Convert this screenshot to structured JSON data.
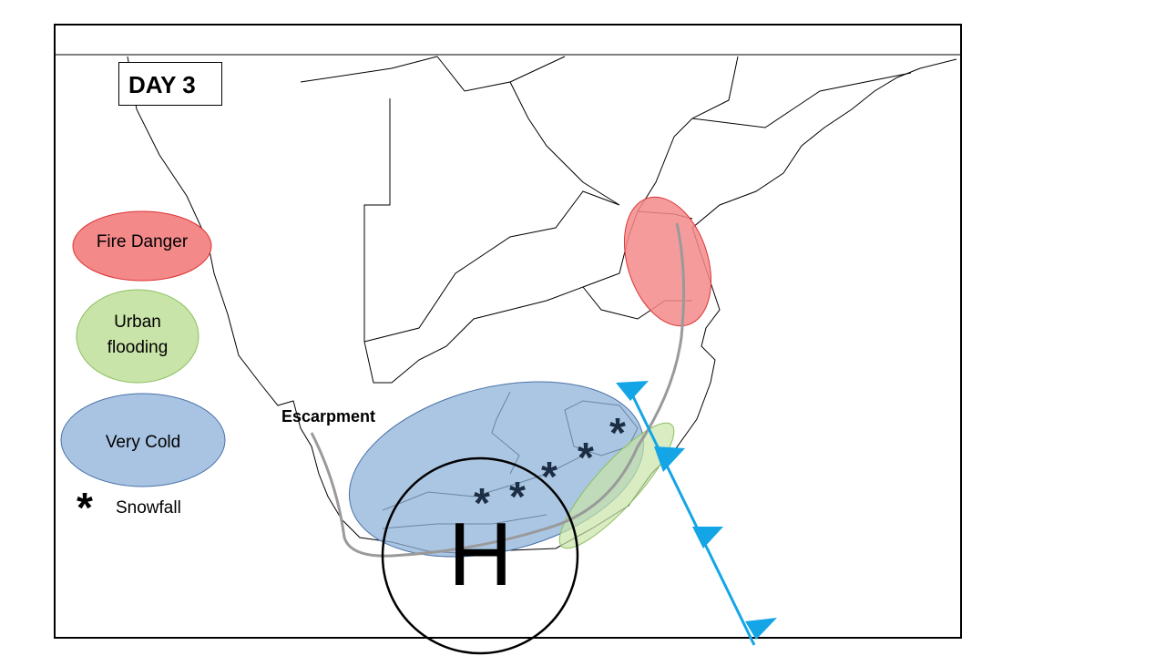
{
  "title": "DAY 3",
  "legend": {
    "fire": {
      "label": "Fire Danger",
      "color": "#f4898a"
    },
    "flood": {
      "label_line1": "Urban",
      "label_line2": "flooding",
      "color": "#c9e4a8"
    },
    "cold": {
      "label": "Very Cold",
      "color": "#8fb3d8"
    },
    "snow": {
      "label": "Snowfall",
      "symbol": "*"
    }
  },
  "labels": {
    "escarpment": "Escarpment",
    "high_pressure": "H"
  },
  "colors": {
    "front": "#14a5e6",
    "escarpment_line": "#9a9a9a",
    "snow_symbol": "#1c2e45"
  }
}
